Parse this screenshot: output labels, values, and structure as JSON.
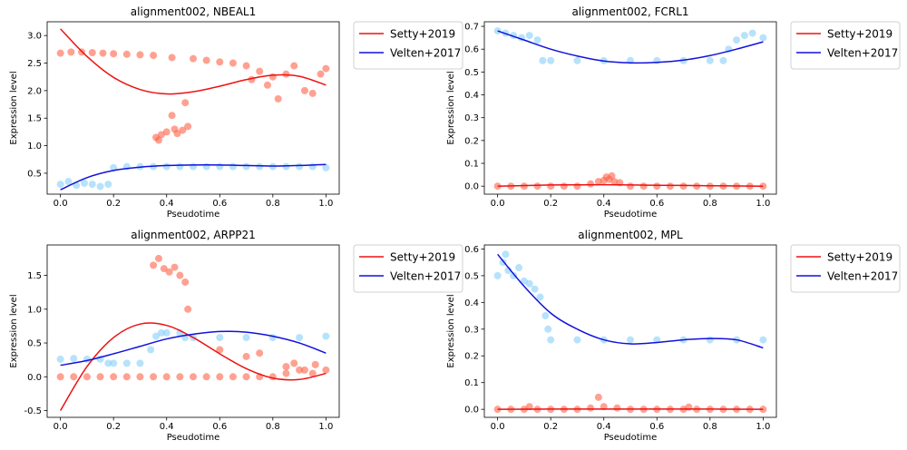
{
  "colors": {
    "setty_fit": "#ee1111",
    "velten_fit": "#1111dd",
    "setty_points": "#ff6347",
    "velten_points": "#87cefa",
    "axis": "#000000"
  },
  "chart_data": [
    {
      "type": "scatter",
      "title": "alignment002, NBEAL1",
      "xlabel": "Pseudotime",
      "ylabel": "Expression level",
      "xlim": [
        -0.05,
        1.05
      ],
      "ylim": [
        0.12,
        3.25
      ],
      "xticks": [
        0.0,
        0.2,
        0.4,
        0.6,
        0.8,
        1.0
      ],
      "yticks": [
        0.5,
        1.0,
        1.5,
        2.0,
        2.5,
        3.0
      ],
      "legend": "outside-top-right",
      "series": [
        {
          "name": "Setty+2019",
          "kind": "line",
          "color_key": "setty_fit",
          "x": [
            0.0,
            0.1,
            0.2,
            0.3,
            0.4,
            0.5,
            0.6,
            0.7,
            0.8,
            0.9,
            1.0
          ],
          "y": [
            3.12,
            2.62,
            2.24,
            2.02,
            1.94,
            1.98,
            2.08,
            2.2,
            2.28,
            2.26,
            2.1
          ]
        },
        {
          "name": "Velten+2017",
          "kind": "line",
          "color_key": "velten_fit",
          "x": [
            0.0,
            0.1,
            0.2,
            0.3,
            0.4,
            0.5,
            0.6,
            0.7,
            0.8,
            0.9,
            1.0
          ],
          "y": [
            0.2,
            0.42,
            0.55,
            0.61,
            0.64,
            0.65,
            0.65,
            0.64,
            0.63,
            0.64,
            0.66
          ]
        },
        {
          "name": "",
          "kind": "points",
          "color_key": "setty_points",
          "x": [
            0.0,
            0.04,
            0.08,
            0.12,
            0.16,
            0.2,
            0.25,
            0.3,
            0.35,
            0.42,
            0.5,
            0.55,
            0.6,
            0.65,
            0.7,
            0.72,
            0.75,
            0.78,
            0.8,
            0.82,
            0.85,
            0.88,
            0.92,
            0.95,
            0.98,
            1.0,
            0.36,
            0.38,
            0.4,
            0.43,
            0.46,
            0.48,
            0.37,
            0.44,
            0.47,
            0.42
          ],
          "y": [
            2.68,
            2.7,
            2.7,
            2.69,
            2.68,
            2.67,
            2.66,
            2.65,
            2.64,
            2.6,
            2.58,
            2.55,
            2.52,
            2.5,
            2.45,
            2.2,
            2.35,
            2.1,
            2.25,
            1.85,
            2.3,
            2.45,
            2.0,
            1.95,
            2.3,
            2.4,
            1.15,
            1.2,
            1.25,
            1.3,
            1.28,
            1.35,
            1.1,
            1.22,
            1.78,
            1.55
          ]
        },
        {
          "name": "",
          "kind": "points",
          "color_key": "velten_points",
          "x": [
            0.0,
            0.03,
            0.06,
            0.09,
            0.12,
            0.15,
            0.18,
            0.2,
            0.25,
            0.3,
            0.35,
            0.4,
            0.45,
            0.5,
            0.55,
            0.6,
            0.65,
            0.7,
            0.75,
            0.8,
            0.85,
            0.9,
            0.95,
            1.0
          ],
          "y": [
            0.3,
            0.35,
            0.28,
            0.32,
            0.3,
            0.26,
            0.3,
            0.6,
            0.62,
            0.62,
            0.62,
            0.62,
            0.62,
            0.62,
            0.62,
            0.62,
            0.62,
            0.62,
            0.62,
            0.62,
            0.62,
            0.62,
            0.62,
            0.6
          ]
        }
      ]
    },
    {
      "type": "scatter",
      "title": "alignment002, FCRL1",
      "xlabel": "Pseudotime",
      "ylabel": "Expression level",
      "xlim": [
        -0.05,
        1.05
      ],
      "ylim": [
        -0.035,
        0.72
      ],
      "xticks": [
        0.0,
        0.2,
        0.4,
        0.6,
        0.8,
        1.0
      ],
      "yticks": [
        0.0,
        0.1,
        0.2,
        0.3,
        0.4,
        0.5,
        0.6,
        0.7
      ],
      "legend": "outside-top-right",
      "series": [
        {
          "name": "Setty+2019",
          "kind": "line",
          "color_key": "setty_fit",
          "x": [
            0.0,
            0.2,
            0.4,
            0.6,
            0.8,
            1.0
          ],
          "y": [
            0.0,
            0.005,
            0.006,
            0.004,
            0.002,
            0.0
          ]
        },
        {
          "name": "Velten+2017",
          "kind": "line",
          "color_key": "velten_fit",
          "x": [
            0.0,
            0.1,
            0.2,
            0.3,
            0.4,
            0.5,
            0.6,
            0.7,
            0.8,
            0.9,
            1.0
          ],
          "y": [
            0.68,
            0.64,
            0.6,
            0.57,
            0.548,
            0.54,
            0.542,
            0.552,
            0.572,
            0.6,
            0.632
          ]
        },
        {
          "name": "",
          "kind": "points",
          "color_key": "setty_points",
          "x": [
            0.0,
            0.05,
            0.1,
            0.15,
            0.2,
            0.25,
            0.3,
            0.35,
            0.38,
            0.4,
            0.42,
            0.44,
            0.46,
            0.5,
            0.55,
            0.6,
            0.65,
            0.7,
            0.75,
            0.8,
            0.85,
            0.9,
            0.95,
            1.0,
            0.41,
            0.43
          ],
          "y": [
            0.0,
            0.0,
            0.0,
            0.0,
            0.0,
            0.0,
            0.0,
            0.01,
            0.02,
            0.025,
            0.03,
            0.02,
            0.015,
            0.0,
            0.0,
            0.0,
            0.0,
            0.0,
            0.0,
            0.0,
            0.0,
            0.0,
            0.0,
            0.0,
            0.04,
            0.045
          ]
        },
        {
          "name": "",
          "kind": "points",
          "color_key": "velten_points",
          "x": [
            0.0,
            0.03,
            0.06,
            0.09,
            0.12,
            0.15,
            0.17,
            0.2,
            0.3,
            0.4,
            0.5,
            0.6,
            0.7,
            0.8,
            0.85,
            0.87,
            0.9,
            0.93,
            0.96,
            1.0
          ],
          "y": [
            0.68,
            0.67,
            0.66,
            0.65,
            0.66,
            0.64,
            0.55,
            0.55,
            0.55,
            0.55,
            0.55,
            0.55,
            0.55,
            0.55,
            0.55,
            0.6,
            0.64,
            0.66,
            0.67,
            0.65
          ]
        }
      ]
    },
    {
      "type": "scatter",
      "title": "alignment002, ARPP21",
      "xlabel": "Pseudotime",
      "ylabel": "Expression level",
      "xlim": [
        -0.05,
        1.05
      ],
      "ylim": [
        -0.6,
        1.95
      ],
      "xticks": [
        0.0,
        0.2,
        0.4,
        0.6,
        0.8,
        1.0
      ],
      "yticks": [
        -0.5,
        0.0,
        0.5,
        1.0,
        1.5
      ],
      "legend": "outside-top-right",
      "series": [
        {
          "name": "Setty+2019",
          "kind": "line",
          "color_key": "setty_fit",
          "x": [
            0.0,
            0.1,
            0.2,
            0.3,
            0.4,
            0.5,
            0.6,
            0.7,
            0.8,
            0.9,
            1.0
          ],
          "y": [
            -0.5,
            0.15,
            0.58,
            0.78,
            0.76,
            0.58,
            0.34,
            0.12,
            -0.02,
            -0.04,
            0.05
          ]
        },
        {
          "name": "Velten+2017",
          "kind": "line",
          "color_key": "velten_fit",
          "x": [
            0.0,
            0.1,
            0.2,
            0.3,
            0.4,
            0.5,
            0.6,
            0.7,
            0.8,
            0.9,
            1.0
          ],
          "y": [
            0.17,
            0.24,
            0.34,
            0.45,
            0.56,
            0.63,
            0.67,
            0.66,
            0.6,
            0.5,
            0.35
          ]
        },
        {
          "name": "",
          "kind": "points",
          "color_key": "setty_points",
          "x": [
            0.0,
            0.05,
            0.1,
            0.15,
            0.2,
            0.25,
            0.3,
            0.35,
            0.4,
            0.45,
            0.5,
            0.55,
            0.6,
            0.65,
            0.7,
            0.75,
            0.8,
            0.85,
            0.9,
            0.95,
            1.0,
            0.35,
            0.37,
            0.39,
            0.41,
            0.43,
            0.45,
            0.47,
            0.48,
            0.6,
            0.7,
            0.75,
            0.85,
            0.88,
            0.92,
            0.96
          ],
          "y": [
            0.0,
            0.0,
            0.0,
            0.0,
            0.0,
            0.0,
            0.0,
            0.0,
            0.0,
            0.0,
            0.0,
            0.0,
            0.0,
            0.0,
            0.0,
            0.0,
            0.0,
            0.05,
            0.1,
            0.05,
            0.1,
            1.65,
            1.75,
            1.6,
            1.55,
            1.62,
            1.5,
            1.4,
            1.0,
            0.4,
            0.3,
            0.35,
            0.15,
            0.2,
            0.1,
            0.18
          ]
        },
        {
          "name": "",
          "kind": "points",
          "color_key": "velten_points",
          "x": [
            0.0,
            0.05,
            0.1,
            0.15,
            0.18,
            0.2,
            0.25,
            0.3,
            0.34,
            0.36,
            0.38,
            0.4,
            0.45,
            0.47,
            0.5,
            0.6,
            0.7,
            0.8,
            0.9,
            1.0
          ],
          "y": [
            0.26,
            0.27,
            0.26,
            0.26,
            0.2,
            0.2,
            0.2,
            0.2,
            0.4,
            0.6,
            0.65,
            0.65,
            0.65,
            0.58,
            0.58,
            0.58,
            0.58,
            0.58,
            0.58,
            0.6
          ]
        }
      ]
    },
    {
      "type": "scatter",
      "title": "alignment002, MPL",
      "xlabel": "Pseudotime",
      "ylabel": "Expression level",
      "xlim": [
        -0.05,
        1.05
      ],
      "ylim": [
        -0.03,
        0.615
      ],
      "xticks": [
        0.0,
        0.2,
        0.4,
        0.6,
        0.8,
        1.0
      ],
      "yticks": [
        0.0,
        0.1,
        0.2,
        0.3,
        0.4,
        0.5,
        0.6
      ],
      "legend": "outside-top-right",
      "series": [
        {
          "name": "Setty+2019",
          "kind": "line",
          "color_key": "setty_fit",
          "x": [
            0.0,
            0.2,
            0.4,
            0.6,
            0.8,
            1.0
          ],
          "y": [
            0.0,
            0.001,
            0.001,
            0.001,
            0.001,
            0.0
          ]
        },
        {
          "name": "Velten+2017",
          "kind": "line",
          "color_key": "velten_fit",
          "x": [
            0.0,
            0.1,
            0.2,
            0.3,
            0.4,
            0.5,
            0.6,
            0.7,
            0.8,
            0.9,
            1.0
          ],
          "y": [
            0.58,
            0.46,
            0.36,
            0.3,
            0.26,
            0.245,
            0.25,
            0.26,
            0.265,
            0.26,
            0.23
          ]
        },
        {
          "name": "",
          "kind": "points",
          "color_key": "setty_points",
          "x": [
            0.0,
            0.05,
            0.1,
            0.15,
            0.2,
            0.25,
            0.3,
            0.35,
            0.4,
            0.45,
            0.5,
            0.55,
            0.6,
            0.65,
            0.7,
            0.75,
            0.8,
            0.85,
            0.9,
            0.95,
            1.0,
            0.38,
            0.12,
            0.72
          ],
          "y": [
            0.0,
            0.0,
            0.0,
            0.0,
            0.0,
            0.0,
            0.0,
            0.005,
            0.01,
            0.005,
            0.0,
            0.0,
            0.0,
            0.0,
            0.0,
            0.0,
            0.0,
            0.0,
            0.0,
            0.0,
            0.0,
            0.045,
            0.01,
            0.008
          ]
        },
        {
          "name": "",
          "kind": "points",
          "color_key": "velten_points",
          "x": [
            0.0,
            0.02,
            0.04,
            0.06,
            0.08,
            0.1,
            0.12,
            0.14,
            0.16,
            0.18,
            0.19,
            0.2,
            0.3,
            0.4,
            0.5,
            0.6,
            0.7,
            0.8,
            0.9,
            1.0,
            0.03
          ],
          "y": [
            0.5,
            0.55,
            0.52,
            0.5,
            0.53,
            0.48,
            0.47,
            0.45,
            0.42,
            0.35,
            0.3,
            0.26,
            0.26,
            0.26,
            0.26,
            0.26,
            0.26,
            0.26,
            0.26,
            0.26,
            0.58
          ]
        }
      ]
    }
  ]
}
